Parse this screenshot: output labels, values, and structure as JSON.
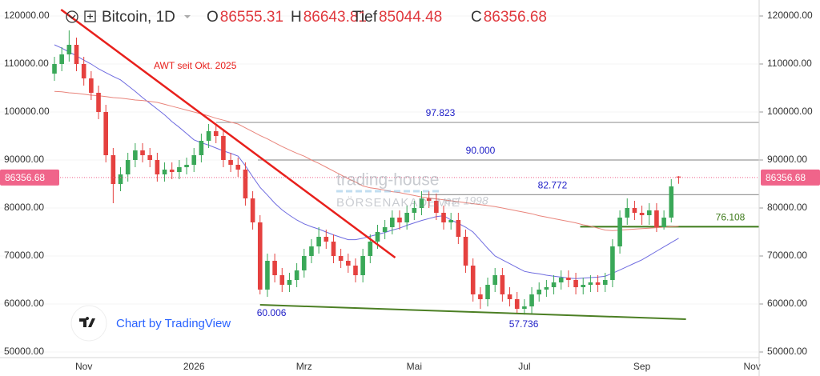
{
  "chart_data": {
    "type": "candlestick",
    "symbol": "Bitcoin, 1D",
    "ohlc_header": [
      {
        "label": "O",
        "value": 86555.31
      },
      {
        "label": "H",
        "value": 86643.81
      },
      {
        "label": "Tief",
        "value": 85044.48
      },
      {
        "label": "C",
        "value": 86356.68
      }
    ],
    "categories": [
      null,
      null,
      null,
      null,
      "Nov",
      null,
      null,
      null,
      null,
      null,
      null,
      null,
      null,
      null,
      null,
      null,
      null,
      null,
      null,
      "2026",
      null,
      null,
      null,
      null,
      null,
      null,
      null,
      null,
      null,
      null,
      null,
      null,
      null,
      null,
      "Mrz",
      null,
      null,
      null,
      null,
      null,
      null,
      null,
      null,
      null,
      null,
      null,
      null,
      null,
      null,
      "Mai",
      null,
      null,
      null,
      null,
      null,
      null,
      null,
      null,
      null,
      null,
      null,
      null,
      null,
      null,
      "Jul",
      null,
      null,
      null,
      null,
      null,
      null,
      null,
      null,
      null,
      null,
      null,
      null,
      null,
      null,
      null,
      "Sep",
      null,
      null,
      null,
      null,
      null,
      null,
      null,
      null,
      null,
      null,
      null,
      null,
      null,
      null,
      "Nov"
    ],
    "open": [
      108000,
      110000,
      112000,
      114000,
      110000,
      107000,
      104000,
      100000,
      91000,
      85000,
      87000,
      90000,
      92000,
      91000,
      90000,
      87000,
      88000,
      87500,
      88500,
      89000,
      91000,
      94000,
      96000,
      95000,
      90000,
      89000,
      88000,
      82000,
      77000,
      63000,
      69000,
      66000,
      64000,
      65000,
      67000,
      70000,
      72000,
      74000,
      73000,
      70000,
      69000,
      68000,
      66000,
      70000,
      73000,
      75000,
      76000,
      78000,
      77000,
      79000,
      80000,
      82000,
      81500,
      79000,
      77000,
      77500,
      74000,
      68000,
      62000,
      61000,
      64000,
      66000,
      62000,
      61000,
      59000,
      59500,
      62000,
      63000,
      63500,
      64500,
      65500,
      65000,
      63500,
      64000,
      64500,
      64000,
      65000,
      72000,
      78000,
      80000,
      79000,
      78500,
      79500,
      76000,
      78000,
      86555.31,
      null,
      null,
      null,
      null,
      null,
      null,
      null,
      null,
      null,
      null
    ],
    "high": [
      111500,
      113500,
      117000,
      115500,
      111500,
      108500,
      105500,
      101500,
      92500,
      88500,
      91500,
      93500,
      93500,
      92500,
      91500,
      89500,
      89500,
      90000,
      90500,
      92500,
      95500,
      97500,
      97500,
      96500,
      91500,
      90500,
      89500,
      83500,
      78500,
      70500,
      70500,
      67500,
      66500,
      68500,
      71500,
      73500,
      76000,
      75500,
      74500,
      71500,
      70500,
      69500,
      71500,
      74500,
      76500,
      77500,
      79500,
      79500,
      80500,
      81500,
      83500,
      83500,
      83000,
      80500,
      79000,
      79000,
      75500,
      69500,
      63500,
      65500,
      67500,
      67500,
      63500,
      62500,
      61000,
      63500,
      64500,
      65000,
      66000,
      67000,
      67000,
      66500,
      65500,
      66000,
      66000,
      66500,
      73500,
      79500,
      82000,
      81500,
      80500,
      81000,
      81000,
      79500,
      86000,
      86643.81,
      null,
      null,
      null,
      null,
      null,
      null,
      null,
      null,
      null,
      null
    ],
    "low": [
      106500,
      108500,
      110500,
      108500,
      105500,
      102500,
      98500,
      89500,
      81000,
      83500,
      85500,
      88500,
      89500,
      88500,
      85500,
      85500,
      86000,
      86000,
      87000,
      87500,
      89500,
      92500,
      93500,
      88500,
      87500,
      86500,
      80500,
      75500,
      62000,
      61500,
      64500,
      62500,
      62500,
      63500,
      65500,
      68500,
      70500,
      71500,
      68500,
      67500,
      66500,
      64500,
      64500,
      68500,
      71500,
      73500,
      74500,
      75500,
      75500,
      77500,
      78500,
      80000,
      77500,
      75500,
      75500,
      72500,
      66500,
      60500,
      59000,
      59500,
      62500,
      60500,
      59500,
      58000,
      57800,
      58000,
      60500,
      61500,
      62000,
      63000,
      63500,
      62000,
      62000,
      62500,
      62500,
      62500,
      63500,
      70500,
      76500,
      77500,
      76500,
      76500,
      75000,
      75500,
      77000,
      85044.48,
      null,
      null,
      null,
      null,
      null,
      null,
      null,
      null,
      null,
      null
    ],
    "close": [
      110000,
      112000,
      114000,
      110000,
      107000,
      104000,
      100000,
      91000,
      85000,
      87000,
      90000,
      92000,
      91000,
      90000,
      87000,
      88000,
      87500,
      88500,
      89000,
      91000,
      94000,
      96000,
      95000,
      90000,
      89000,
      88000,
      82000,
      77000,
      63000,
      69000,
      66000,
      64000,
      65000,
      67000,
      70000,
      72000,
      74000,
      73000,
      70000,
      69000,
      68000,
      66000,
      70000,
      73000,
      75000,
      76000,
      78000,
      77000,
      79000,
      80000,
      82000,
      81500,
      79000,
      77000,
      77500,
      74000,
      68000,
      62000,
      61000,
      64000,
      66000,
      62000,
      61000,
      59000,
      59500,
      62000,
      63000,
      63500,
      64500,
      65500,
      65000,
      63500,
      64000,
      64500,
      64000,
      65000,
      72000,
      78000,
      80000,
      79000,
      78500,
      79500,
      76000,
      78000,
      84500,
      86356.68,
      null,
      null,
      null,
      null,
      null,
      null,
      null,
      null,
      null,
      null
    ],
    "up_color": "#3aa858",
    "down_color": "#e5413f",
    "series": [
      {
        "color": "#6f6ce0",
        "values": [
          114000,
          113300,
          112500,
          111700,
          110800,
          110000,
          109000,
          108200,
          107400,
          106700,
          105500,
          104300,
          103000,
          101800,
          100600,
          99400,
          98000,
          96800,
          95500,
          94200,
          93600,
          93100,
          92500,
          91900,
          91400,
          90800,
          88800,
          86500,
          84300,
          82700,
          81000,
          79600,
          78500,
          77500,
          76700,
          76100,
          75600,
          75000,
          74400,
          73900,
          73400,
          73400,
          73700,
          74100,
          74500,
          74900,
          75400,
          75800,
          76400,
          76900,
          77400,
          77800,
          78200,
          78400,
          77500,
          76800,
          76000,
          75000,
          73300,
          71600,
          70000,
          69200,
          68400,
          67600,
          66800,
          66500,
          66300,
          66000,
          65800,
          65600,
          65400,
          65300,
          65400,
          65500,
          65600,
          65800,
          66400,
          67100,
          67800,
          68500,
          69200,
          70100,
          71000,
          71900,
          72800,
          73700,
          null,
          null,
          null,
          null,
          null,
          null,
          null,
          null,
          null,
          null
        ]
      },
      {
        "color": "#e9857c",
        "values": [
          104300,
          104200,
          104000,
          103900,
          103700,
          103500,
          103400,
          103200,
          103000,
          102900,
          102700,
          102500,
          102400,
          102200,
          102000,
          101600,
          101200,
          100800,
          100400,
          100000,
          99600,
          99200,
          98700,
          98300,
          97900,
          97500,
          96700,
          95900,
          95100,
          94400,
          93600,
          92800,
          92100,
          91400,
          90800,
          90000,
          89300,
          88500,
          87700,
          86900,
          86100,
          85400,
          84600,
          84200,
          84000,
          83700,
          83400,
          83200,
          82900,
          82600,
          82300,
          82100,
          81900,
          81700,
          81500,
          81300,
          81100,
          80900,
          80700,
          80500,
          80300,
          80000,
          79700,
          79400,
          79100,
          78800,
          78400,
          78100,
          77800,
          77500,
          77200,
          76900,
          76500,
          76200,
          75800,
          75400,
          75300,
          75400,
          75500,
          75600,
          75700,
          75800,
          75900,
          76000,
          76100,
          76200,
          null,
          null,
          null,
          null,
          null,
          null,
          null,
          null,
          null,
          null
        ]
      }
    ],
    "ylim": [
      48000,
      123333
    ],
    "yticks": [
      {
        "value": 50000,
        "label": "50000.00"
      },
      {
        "value": 60000,
        "label": "60000.00"
      },
      {
        "value": 70000,
        "label": "70000.00"
      },
      {
        "value": 80000,
        "label": "80000.00"
      },
      {
        "value": 90000,
        "label": "90000.00"
      },
      {
        "value": 100000,
        "label": "100000.00"
      },
      {
        "value": 110000,
        "label": "110000.00"
      },
      {
        "value": 120000,
        "label": "120000.00"
      }
    ],
    "trendlines": [
      {
        "color": "#e8201c",
        "x": [
          0.9,
          46.4
        ],
        "values": [
          121333,
          69667
        ],
        "label": "AWT seit Okt. 2025"
      },
      {
        "color": "#4c7f24",
        "x": [
          28,
          86
        ],
        "values": [
          59833,
          56833
        ]
      }
    ],
    "levels": [
      {
        "value": 97823,
        "label": "97.823",
        "color": "#9a9a9a",
        "label_color": "#2020c8",
        "start": 22
      },
      {
        "value": 90000,
        "label": "90.000",
        "color": "#9a9a9a",
        "label_color": "#2020c8",
        "start": 27.7
      },
      {
        "value": 82772,
        "label": "82.772",
        "color": "#9a9a9a",
        "label_color": "#2020c8",
        "start": 50
      },
      {
        "value": 76108,
        "label": "76.108",
        "color": "#3d7a1a",
        "label_color": "#3d7a1a",
        "start": 71.6
      }
    ],
    "lows": [
      {
        "value": 60006,
        "label": "60.006"
      },
      {
        "value": 57736,
        "label": "57.736"
      }
    ],
    "price_label_color": "#f0648a",
    "watermark": {
      "brand": "trading-house",
      "sub": "BÖRSENAKADEMIE",
      "est": "est 1998"
    },
    "credit": "Chart by TradingView"
  }
}
